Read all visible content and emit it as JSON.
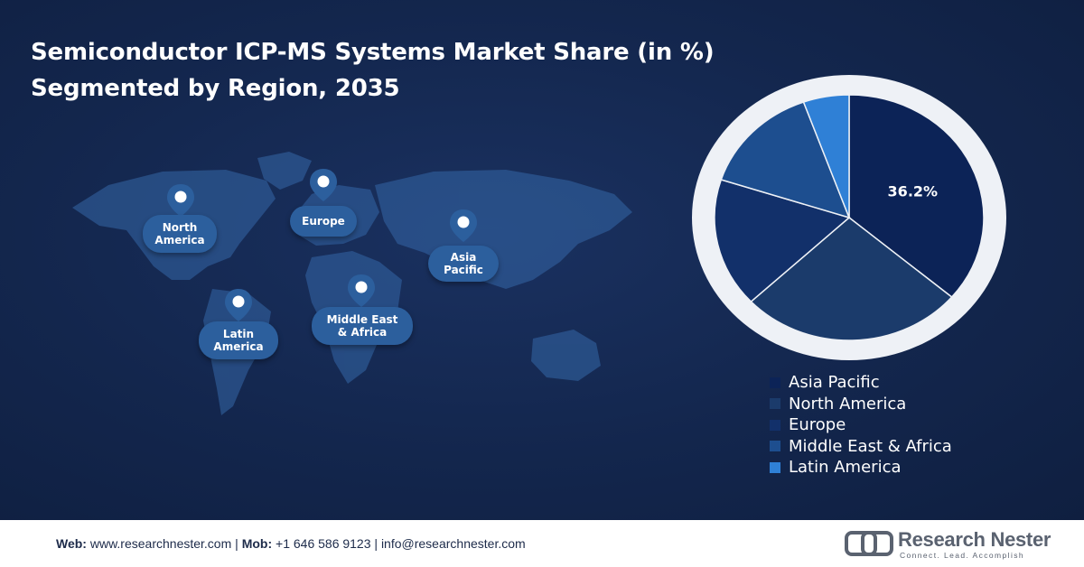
{
  "title": {
    "line1": "Semiconductor ICP-MS Systems Market Share (in %)",
    "line2": "Segmented by Region, 2035"
  },
  "map_labels": {
    "north_america": [
      "North",
      "America"
    ],
    "europe": [
      "Europe"
    ],
    "asia_pacific": [
      "Asia",
      "Pacific"
    ],
    "latin_america": [
      "Latin",
      "America"
    ],
    "middle_east_africa": [
      "Middle East",
      "& Africa"
    ]
  },
  "chart_data": {
    "type": "pie",
    "categories": [
      "Asia Pacific",
      "North America",
      "Europe",
      "Middle East & Africa",
      "Latin America"
    ],
    "values": [
      36.2,
      26.8,
      17.0,
      14.5,
      5.5
    ],
    "data_labels": [
      "36.2%",
      "",
      "",
      "",
      ""
    ],
    "colors": [
      "#0c2357",
      "#1b3b6b",
      "#12306a",
      "#1d4e8f",
      "#2f80d6"
    ],
    "legend_position": "bottom-right"
  },
  "footer": {
    "web_label": "Web:",
    "web_value": "www.researchnester.com",
    "mob_label": "Mob:",
    "mob_value": "+1 646 586 9123",
    "email": "info@researchnester.com",
    "separator": "|"
  },
  "logo": {
    "name": "Research Nester",
    "tagline": "Connect. Lead. Accomplish"
  }
}
